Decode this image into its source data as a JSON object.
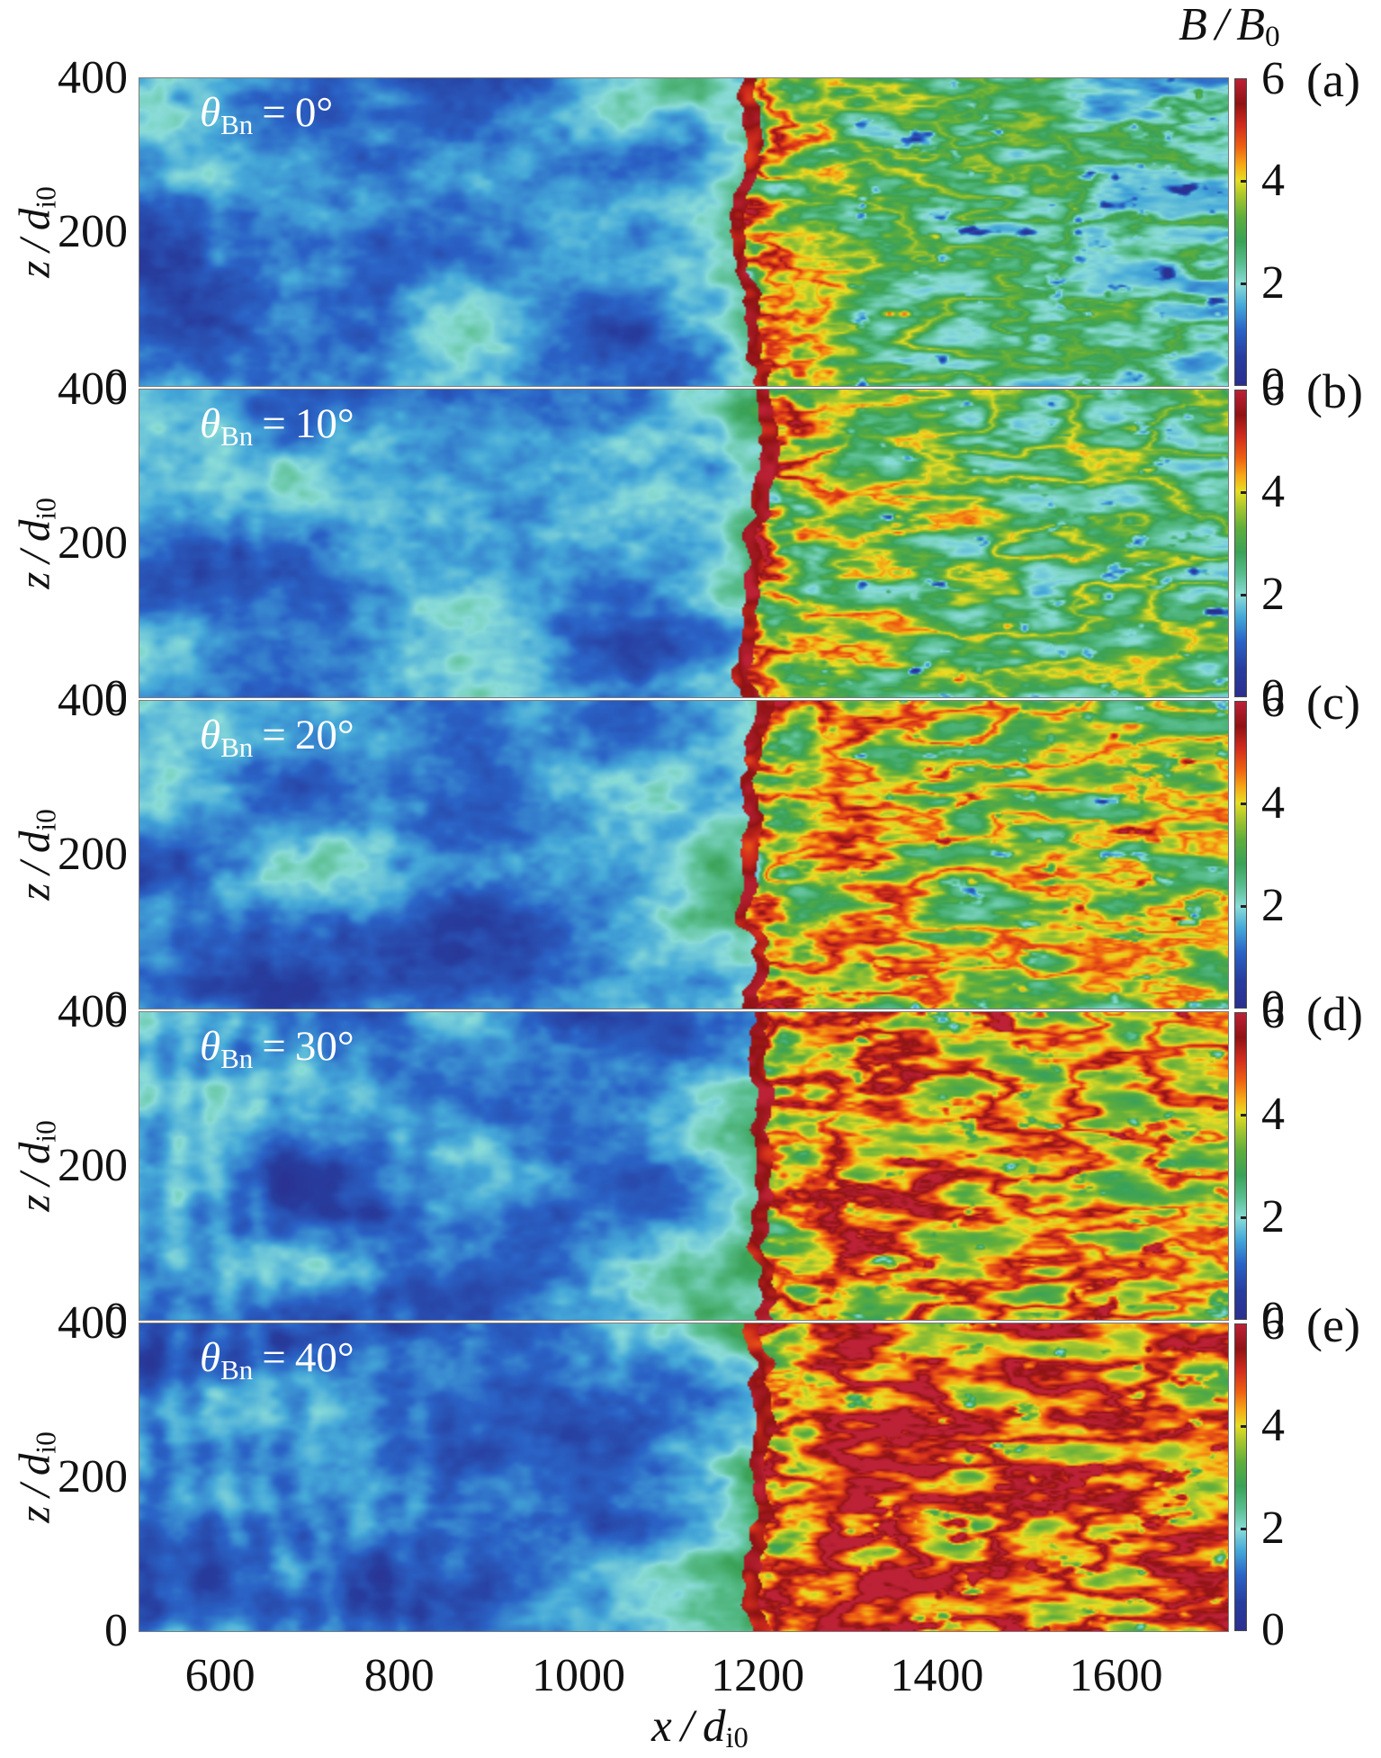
{
  "labels": {
    "colorbar_title": {
      "b1": "B",
      "slash": "/",
      "b2": "B",
      "sub": "0"
    },
    "x_axis": {
      "sym": "x",
      "slash": "/",
      "d": "d",
      "sub": "i0"
    },
    "y_axis": {
      "sym": "z",
      "slash": "/",
      "d": "d",
      "sub": "i0"
    }
  },
  "axes": {
    "x": {
      "ticks": [
        "600",
        "800",
        "1000",
        "1200",
        "1400",
        "1600"
      ]
    },
    "y": {
      "ticks": [
        "400",
        "200",
        "0"
      ]
    }
  },
  "colorbar": {
    "ticks": [
      "6",
      "4",
      "2",
      "0"
    ]
  },
  "panels": [
    {
      "letter": "(a)",
      "theta": {
        "sym": "θ",
        "sub_b": "B",
        "sub_n": "n",
        "eq": "=",
        "val": "0°"
      }
    },
    {
      "letter": "(b)",
      "theta": {
        "sym": "θ",
        "sub_b": "B",
        "sub_n": "n",
        "eq": "=",
        "val": "10°"
      }
    },
    {
      "letter": "(c)",
      "theta": {
        "sym": "θ",
        "sub_b": "B",
        "sub_n": "n",
        "eq": "=",
        "val": "20°"
      }
    },
    {
      "letter": "(d)",
      "theta": {
        "sym": "θ",
        "sub_b": "B",
        "sub_n": "n",
        "eq": "=",
        "val": "30°"
      }
    },
    {
      "letter": "(e)",
      "theta": {
        "sym": "θ",
        "sub_b": "B",
        "sub_n": "n",
        "eq": "=",
        "val": "40°"
      }
    }
  ],
  "chart_data": {
    "type": "heatmap",
    "title": "B / B0",
    "xlabel": "x / d_i0",
    "ylabel": "z / d_i0",
    "colorbar_label": "B / B0",
    "xlim": [
      510,
      1725
    ],
    "ylim": [
      0,
      400
    ],
    "clim": [
      0,
      6
    ],
    "x_ticks": [
      600,
      800,
      1000,
      1200,
      1400,
      1600
    ],
    "y_ticks": [
      400,
      200,
      0
    ],
    "colorbar_ticks": [
      6,
      4,
      2,
      0
    ],
    "legend_position": "right-per-panel",
    "grid": false,
    "shock_x_approx": 1195,
    "colormap_stops": [
      [
        0.0,
        "#2b2f8f"
      ],
      [
        0.09,
        "#273d9e"
      ],
      [
        0.18,
        "#2a63c6"
      ],
      [
        0.26,
        "#45a8d8"
      ],
      [
        0.33,
        "#8adcd8"
      ],
      [
        0.4,
        "#58bd8d"
      ],
      [
        0.47,
        "#3aa257"
      ],
      [
        0.55,
        "#5fae3c"
      ],
      [
        0.62,
        "#a9c72e"
      ],
      [
        0.67,
        "#e8de24"
      ],
      [
        0.72,
        "#f6a916"
      ],
      [
        0.78,
        "#ee5f12"
      ],
      [
        0.85,
        "#d02b1d"
      ],
      [
        0.92,
        "#8f1314"
      ],
      [
        1.0,
        "#bc2136"
      ]
    ],
    "panels": [
      {
        "label": "(a)",
        "theta_Bn_deg": 0,
        "upstream_mean_B": 1.0,
        "downstream_mean_B": 1.7,
        "render": {
          "seed": 3,
          "base": 1.55,
          "amp": 0.5,
          "fil": 0.85,
          "near": 1.25,
          "zone_w": 130,
          "zone_base": 0.0,
          "ripple": 0.25,
          "blob": 0.82,
          "fade": 0.35
        }
      },
      {
        "label": "(b)",
        "theta_Bn_deg": 10,
        "upstream_mean_B": 1.0,
        "downstream_mean_B": 1.9,
        "render": {
          "seed": 17,
          "base": 1.85,
          "amp": 0.55,
          "fil": 1.0,
          "near": 1.45,
          "zone_w": 120,
          "zone_base": 0.15,
          "ripple": 0.3,
          "blob": 0.8,
          "fade": 0.35
        }
      },
      {
        "label": "(c)",
        "theta_Bn_deg": 20,
        "upstream_mean_B": 1.0,
        "downstream_mean_B": 2.4,
        "render": {
          "seed": 29,
          "base": 2.25,
          "amp": 0.6,
          "fil": 1.1,
          "near": 1.5,
          "zone_w": 110,
          "zone_base": 0.3,
          "ripple": 0.35,
          "blob": 0.77,
          "fade": 0.1
        }
      },
      {
        "label": "(d)",
        "theta_Bn_deg": 30,
        "upstream_mean_B": 1.0,
        "downstream_mean_B": 2.9,
        "render": {
          "seed": 41,
          "base": 2.7,
          "amp": 0.65,
          "fil": 1.2,
          "near": 1.5,
          "zone_w": 100,
          "zone_base": 0.45,
          "ripple": 0.85,
          "blob": 0.74,
          "fade": 0.0
        }
      },
      {
        "label": "(e)",
        "theta_Bn_deg": 40,
        "upstream_mean_B": 1.0,
        "downstream_mean_B": 3.5,
        "render": {
          "seed": 57,
          "base": 3.25,
          "amp": 0.7,
          "fil": 1.25,
          "near": 1.5,
          "zone_w": 90,
          "zone_base": 0.6,
          "ripple": 0.95,
          "blob": 0.72,
          "fade": 0.0
        }
      }
    ]
  }
}
